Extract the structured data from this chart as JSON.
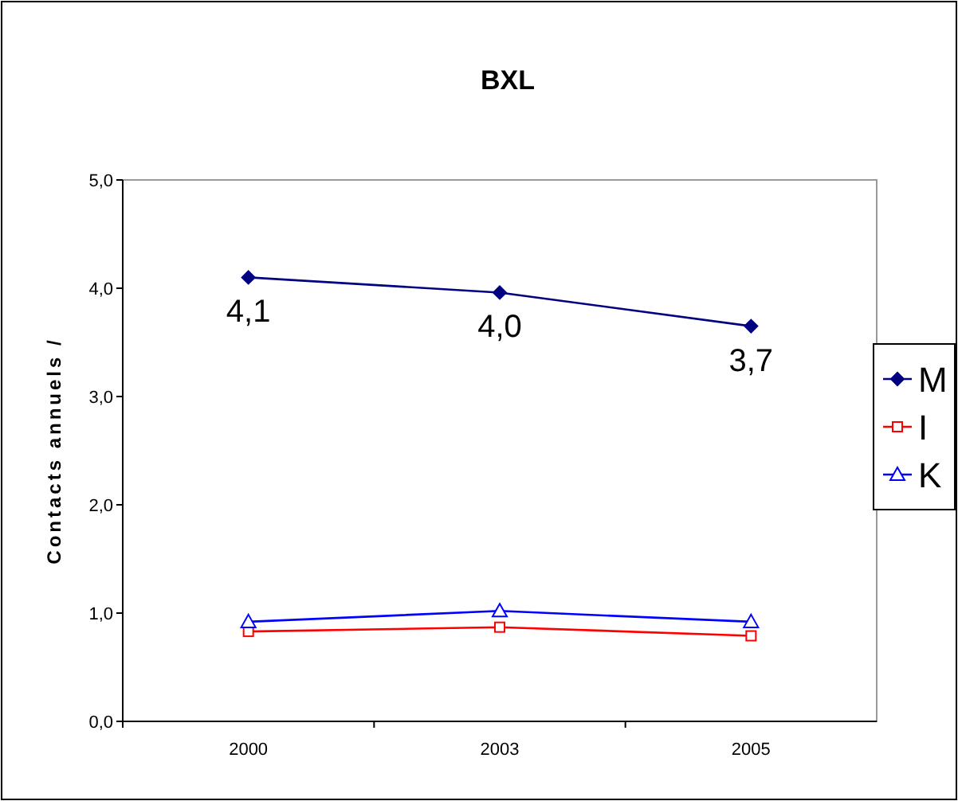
{
  "chart_data": {
    "type": "line",
    "title": "BXL",
    "ylabel": "Contacts annuels /",
    "categories": [
      "2000",
      "2003",
      "2005"
    ],
    "series": [
      {
        "name": "M",
        "color": "#000080",
        "values": [
          4.1,
          3.96,
          3.65
        ],
        "marker": "diamond",
        "value_labels": [
          "4,1",
          "4,0",
          "3,7"
        ]
      },
      {
        "name": "I",
        "color": "#ff0000",
        "values": [
          0.83,
          0.87,
          0.79
        ],
        "marker": "square"
      },
      {
        "name": "K",
        "color": "#0000ff",
        "values": [
          0.92,
          1.02,
          0.92
        ],
        "marker": "triangle"
      }
    ],
    "ylim": [
      0,
      5
    ],
    "yticks": [
      {
        "value": 0,
        "label": "0,0"
      },
      {
        "value": 1,
        "label": "1,0"
      },
      {
        "value": 2,
        "label": "2,0"
      },
      {
        "value": 3,
        "label": "3,0"
      },
      {
        "value": 4,
        "label": "4,0"
      },
      {
        "value": 5,
        "label": "5,0"
      }
    ],
    "grid": false,
    "legend": "right",
    "line_style": "solid"
  }
}
